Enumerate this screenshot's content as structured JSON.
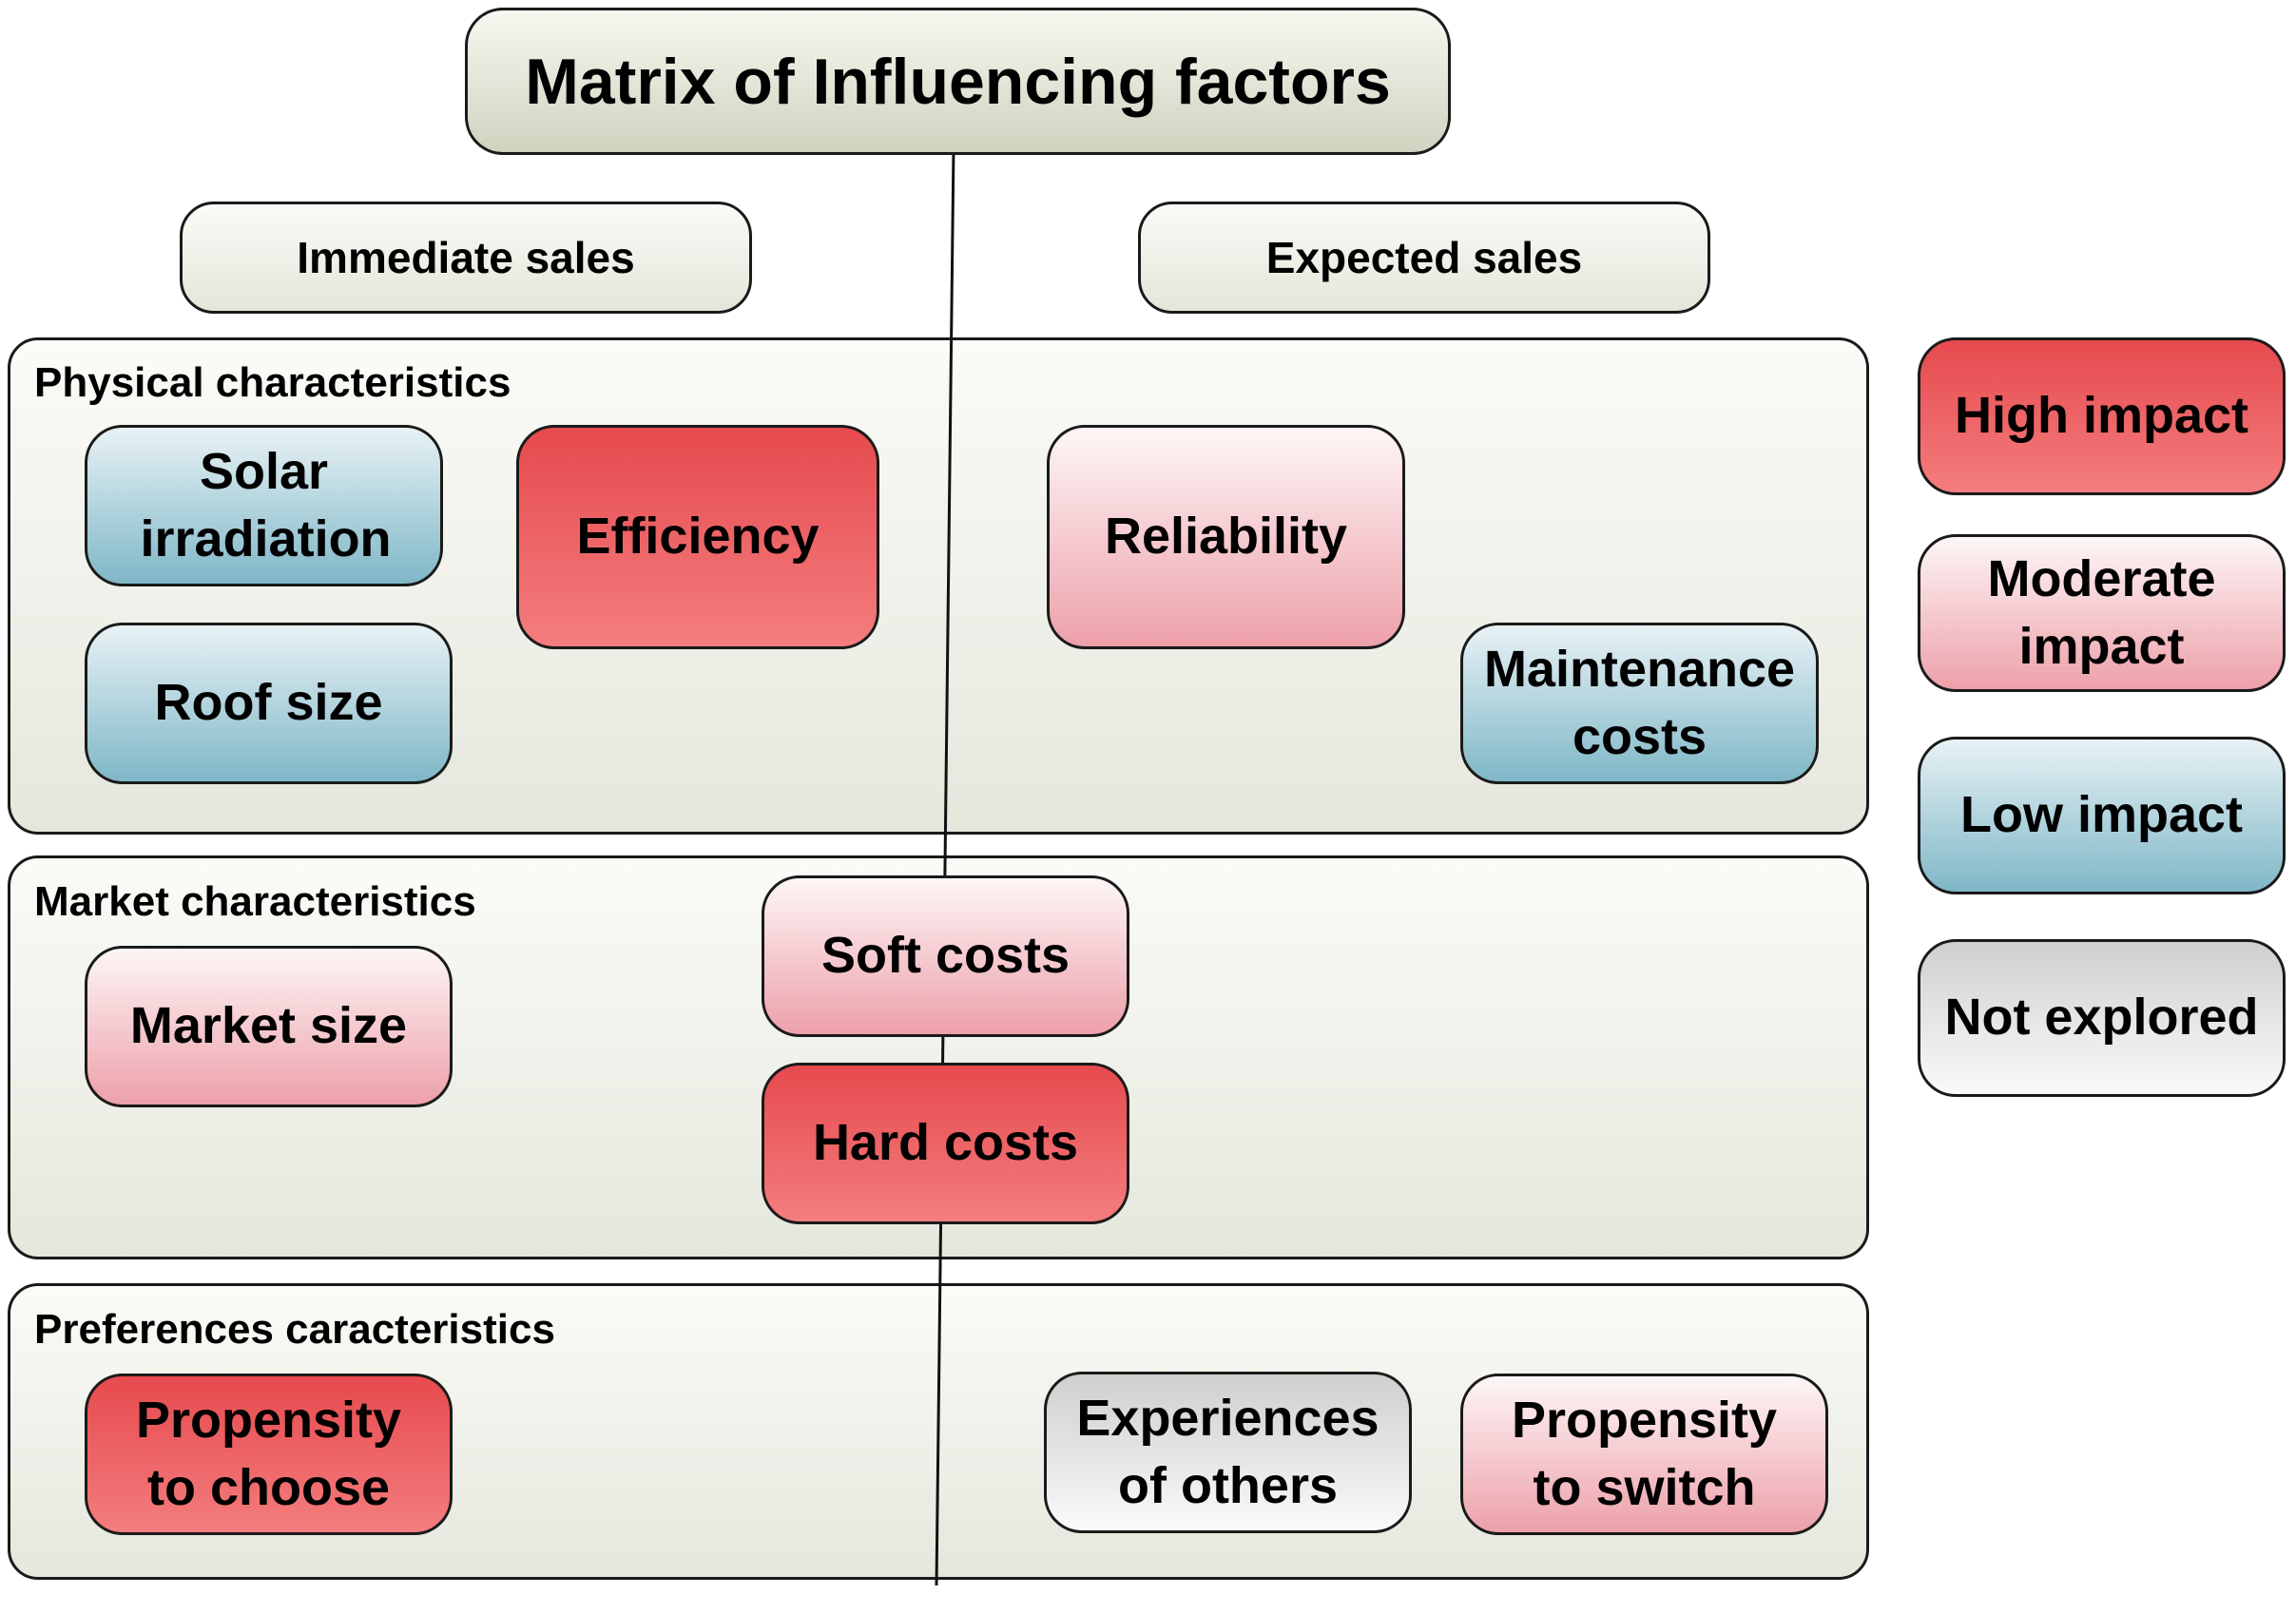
{
  "title": "Matrix of Influencing factors",
  "columns": {
    "immediate": "Immediate sales",
    "expected": "Expected sales"
  },
  "sections": {
    "physical": {
      "label": "Physical characteristics",
      "factors": {
        "solar_irradiation": "Solar irradiation",
        "efficiency": "Efficiency",
        "roof_size": "Roof size",
        "reliability": "Reliability",
        "maintenance_costs": "Maintenance costs"
      }
    },
    "market": {
      "label": "Market characteristics",
      "factors": {
        "market_size": "Market size",
        "soft_costs": "Soft costs",
        "hard_costs": "Hard costs"
      }
    },
    "preferences": {
      "label": "Preferences caracteristics",
      "factors": {
        "propensity_to_choose": "Propensity to choose",
        "experiences_of_others": "Experiences of others",
        "propensity_to_switch": "Propensity to switch"
      }
    }
  },
  "legend": {
    "high": "High impact",
    "moderate": "Moderate impact",
    "low": "Low impact",
    "not_explored": "Not explored"
  },
  "colors": {
    "high": "#e64a4e",
    "moderate": "#eda0aa",
    "low": "#7fb7c7",
    "not_explored": "#cfcfcf",
    "background_panel": "#e5e7dd"
  }
}
